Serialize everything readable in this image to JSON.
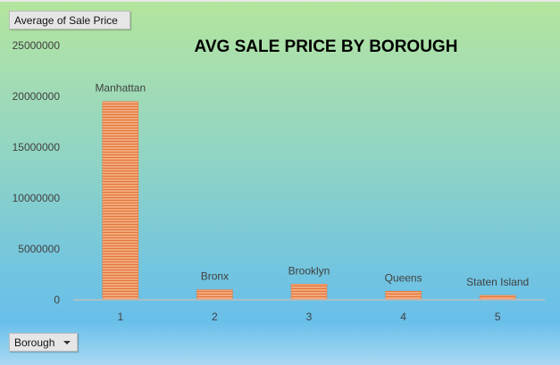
{
  "pivot": {
    "value_field": "Average of Sale Price",
    "axis_field": "Borough"
  },
  "chart_data": {
    "type": "bar",
    "title": "AVG SALE PRICE BY BOROUGH",
    "categories": [
      "1",
      "2",
      "3",
      "4",
      "5"
    ],
    "data_labels": [
      "Manhattan",
      "Bronx",
      "Brooklyn",
      "Queens",
      "Staten Island"
    ],
    "values": [
      19500000,
      1000000,
      1550000,
      850000,
      450000
    ],
    "ylim": [
      0,
      25000000
    ],
    "yticks": [
      "0",
      "5000000",
      "10000000",
      "15000000",
      "20000000",
      "25000000"
    ],
    "xlabel": "",
    "ylabel": "",
    "grid": false,
    "bar_color": "#f4a77a",
    "bar_edge_color": "#e0763c",
    "axis_color": "#bfbfbf"
  }
}
